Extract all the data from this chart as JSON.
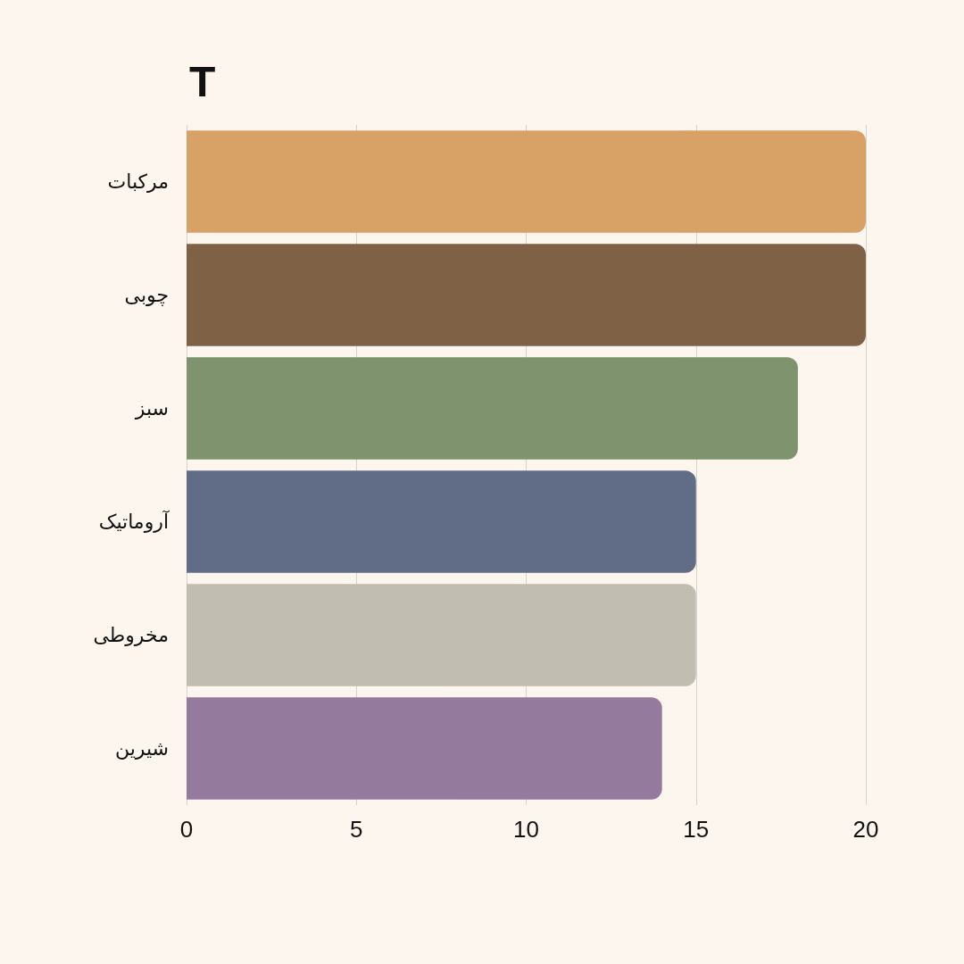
{
  "chart_data": {
    "type": "bar",
    "orientation": "horizontal",
    "title": "T",
    "categories": [
      "مرکبات",
      "چوبی",
      "سبز",
      "آروماتیک",
      "مخروطی",
      "شیرین"
    ],
    "values": [
      20,
      20,
      18,
      15,
      15,
      14
    ],
    "colors": [
      "#d8a166",
      "#7f6245",
      "#7f946e",
      "#616d87",
      "#c1bdb1",
      "#947b9e"
    ],
    "xlim": [
      0,
      20
    ],
    "xticks": [
      0,
      5,
      10,
      15,
      20
    ],
    "grid": "x"
  }
}
